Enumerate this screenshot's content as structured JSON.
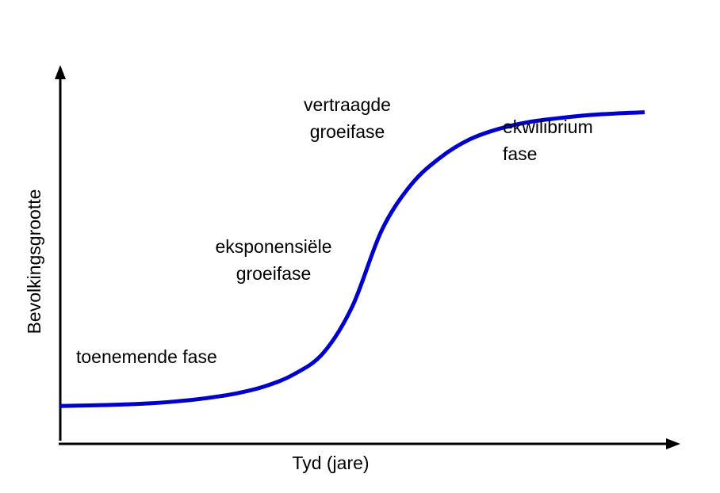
{
  "chart_data": {
    "type": "line",
    "title": "",
    "xlabel": "Tyd (jare)",
    "ylabel": "Bevolkingsgrootte",
    "grid": false,
    "legend": "none",
    "axis_ticks": false,
    "x": [
      0,
      5,
      10,
      15,
      20,
      25,
      30,
      35,
      40,
      45,
      50,
      55,
      60,
      65,
      70,
      75,
      80,
      85,
      90,
      95,
      100
    ],
    "series": [
      {
        "values": [
          0.0,
          0.2,
          0.45,
          0.85,
          1.55,
          2.6,
          4.1,
          6.5,
          10.5,
          17.5,
          33.0,
          58.0,
          73.0,
          82.0,
          88.0,
          91.5,
          93.7,
          95.0,
          96.0,
          96.6,
          97.0
        ],
        "color": "#0000cc"
      }
    ],
    "xlim": [
      0,
      100
    ],
    "ylim": [
      -12.5,
      110
    ],
    "phase_labels": [
      {
        "id": "toenemende",
        "lines": [
          "toenemende fase"
        ]
      },
      {
        "id": "eksponensiele",
        "lines": [
          "eksponensiële",
          "groeifase"
        ]
      },
      {
        "id": "vertraagde",
        "lines": [
          "vertraagde",
          "groeifase"
        ]
      },
      {
        "id": "ekwilibrium",
        "lines": [
          "ekwilibrium",
          "fase"
        ]
      }
    ]
  }
}
